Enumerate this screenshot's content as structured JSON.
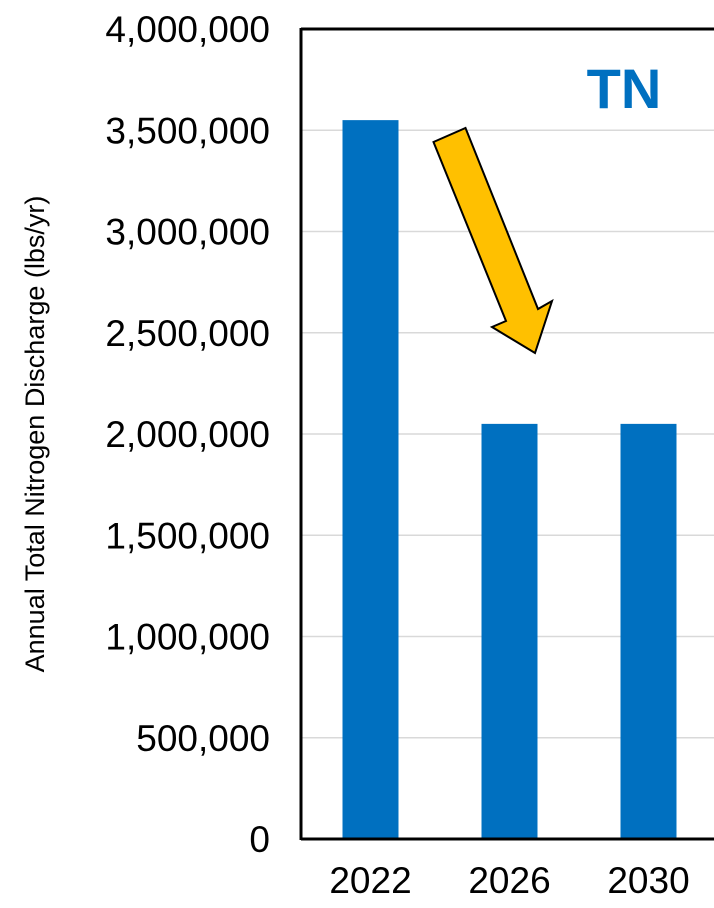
{
  "chart_data": {
    "type": "bar",
    "categories": [
      "2022",
      "2026",
      "2030"
    ],
    "values": [
      3550000,
      2050000,
      2050000
    ],
    "ylabel": "Annual Total Nitrogen Discharge (lbs/yr)",
    "xlabel": "",
    "ylim": [
      0,
      4000000
    ],
    "yticks": [
      "0",
      "500,000",
      "1,000,000",
      "1,500,000",
      "2,000,000",
      "2,500,000",
      "3,000,000",
      "3,500,000",
      "4,000,000"
    ],
    "annotation": "TN",
    "grid": true,
    "colors": {
      "bar": "#0070C0",
      "annotation": "#0070C0",
      "arrow_fill": "#FFC000",
      "arrow_stroke": "#000000",
      "grid": "#D9D9D9"
    }
  }
}
